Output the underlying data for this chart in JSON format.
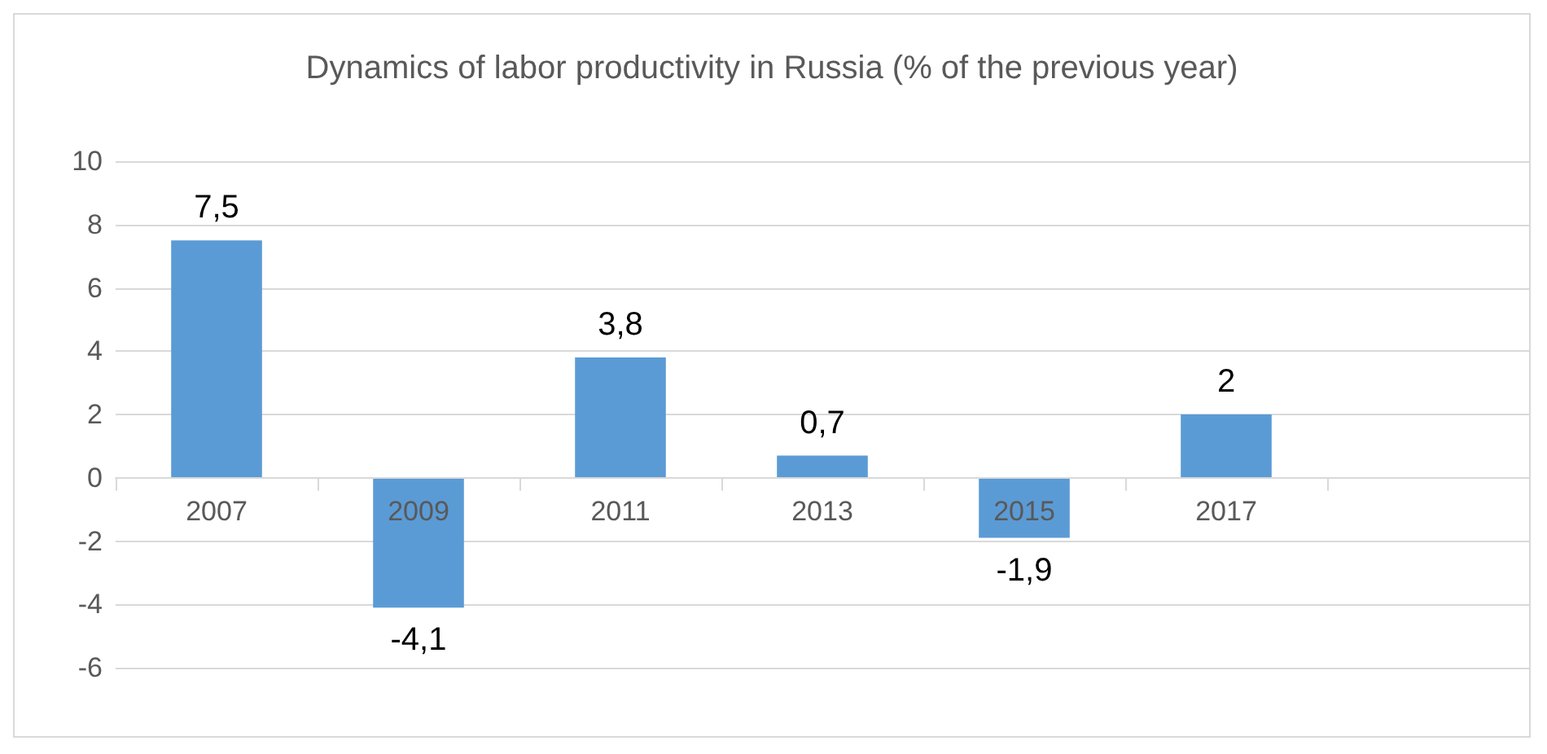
{
  "chart_data": {
    "type": "bar",
    "title": "Dynamics of labor productivity in Russia (% of the previous year)",
    "categories": [
      "2007",
      "2009",
      "2011",
      "2013",
      "2015",
      "2017",
      null
    ],
    "values": [
      7.5,
      -4.1,
      3.8,
      0.7,
      -1.9,
      2,
      null
    ],
    "value_labels": [
      "7,5",
      "-4,1",
      "3,8",
      "0,7",
      "-1,9",
      "2",
      null
    ],
    "color": "#5b9bd5",
    "ylim": [
      -6,
      10
    ],
    "yticks": [
      -6,
      -4,
      -2,
      0,
      2,
      4,
      6,
      8,
      10
    ],
    "grid": "y"
  }
}
